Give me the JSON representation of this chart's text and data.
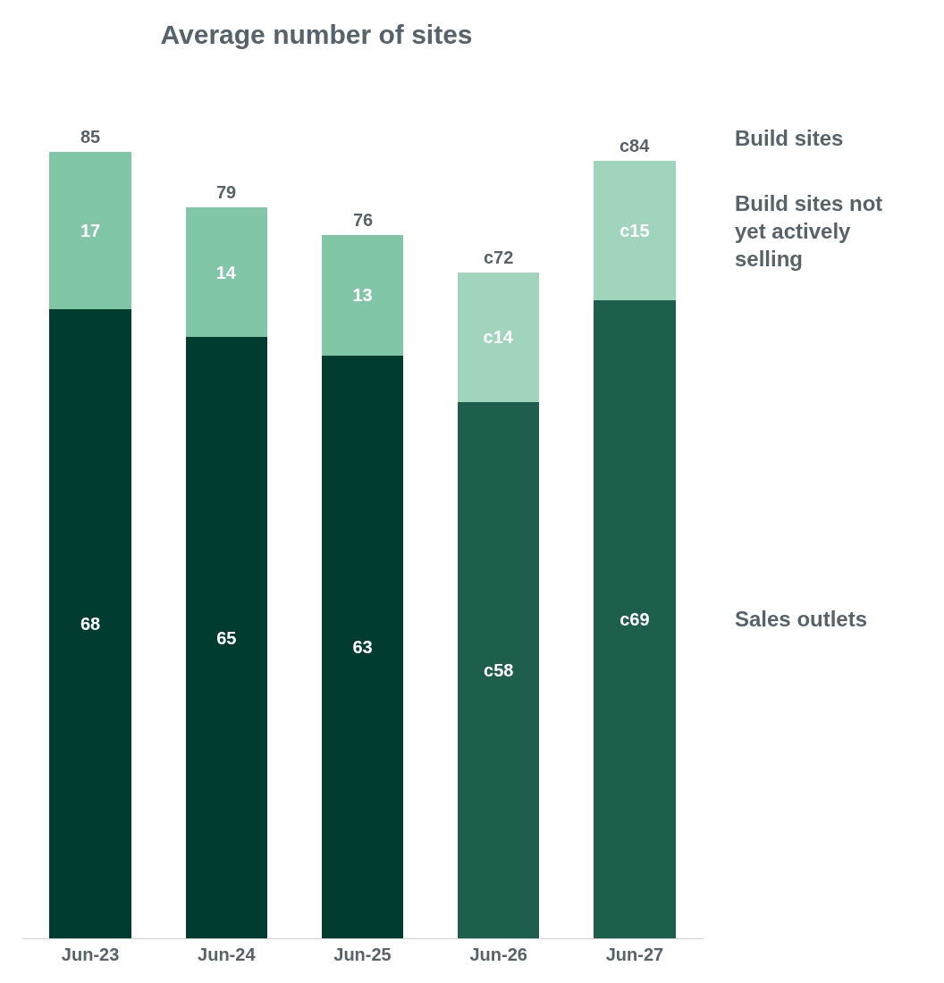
{
  "chart_data": {
    "type": "bar",
    "title": "Average number of sites",
    "legend_title": "Build sites",
    "categories": [
      "Jun-23",
      "Jun-24",
      "Jun-25",
      "Jun-26",
      "Jun-27"
    ],
    "stacked": true,
    "tick_labels": "x",
    "legend": false,
    "series": [
      {
        "name": "Sales outlets",
        "colors": [
          "#003d30",
          "#003d30",
          "#003d30",
          "#1e5e4c",
          "#1e5e4c"
        ],
        "values": [
          68,
          65,
          63,
          58,
          69
        ],
        "value_labels": [
          "68",
          "65",
          "63",
          "c58",
          "c69"
        ]
      },
      {
        "name": "Build sites not yet actively selling",
        "colors": [
          "#82c6a8",
          "#82c6a8",
          "#82c6a8",
          "#a0d4bd",
          "#a0d4bd"
        ],
        "values": [
          17,
          14,
          13,
          14,
          15
        ],
        "value_labels": [
          "17",
          "14",
          "13",
          "c14",
          "c15"
        ]
      }
    ],
    "totals": [
      "85",
      "79",
      "76",
      "c72",
      "c84"
    ]
  }
}
